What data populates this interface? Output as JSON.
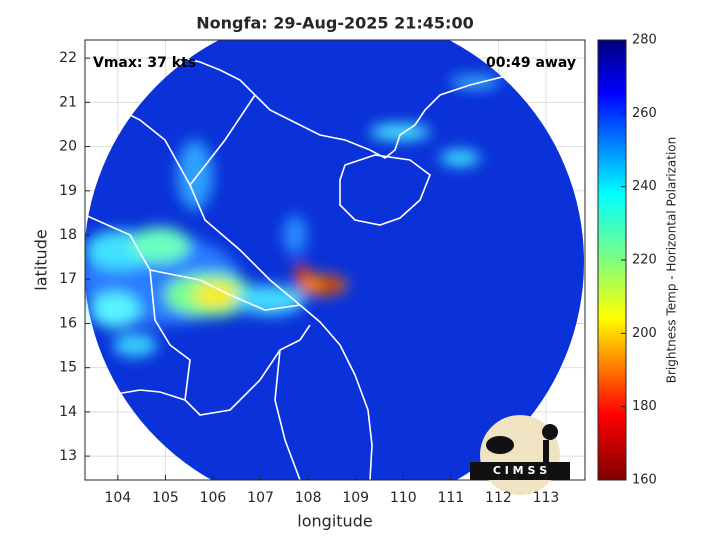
{
  "title": "Nongfa: 29-Aug-2025 21:45:00",
  "vmax": "Vmax: 37 kts",
  "away": "00:49 away",
  "map": {
    "xlabel": "longitude",
    "ylabel": "latitude",
    "xlim": [
      103.31,
      113.82
    ],
    "ylim": [
      12.46,
      22.41
    ],
    "xticks": [
      104,
      105,
      106,
      107,
      108,
      109,
      110,
      111,
      112,
      113
    ],
    "yticks": [
      13,
      14,
      15,
      16,
      17,
      18,
      19,
      20,
      21,
      22
    ],
    "grid": true
  },
  "colorbar": {
    "label": "Brightness Temp - Horizontal Polarization",
    "lim": [
      160,
      280
    ],
    "ticks": [
      160,
      180,
      200,
      220,
      240,
      260,
      280
    ]
  },
  "logo": "C I M S S"
}
